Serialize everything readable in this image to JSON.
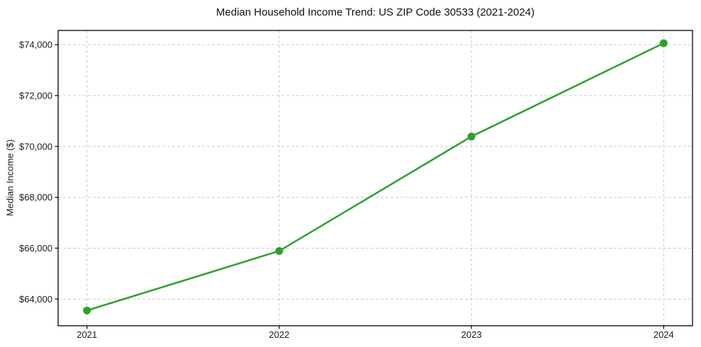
{
  "chart_data": {
    "type": "line",
    "title": "Median Household Income Trend: US ZIP Code 30533 (2021-2024)",
    "xlabel": "",
    "ylabel": "Median Income ($)",
    "x": [
      2021,
      2022,
      2023,
      2024
    ],
    "y": [
      63550,
      65890,
      70390,
      74060
    ],
    "xtick_labels": [
      "2021",
      "2022",
      "2023",
      "2024"
    ],
    "yticks": [
      64000,
      66000,
      68000,
      70000,
      72000,
      74000
    ],
    "ytick_labels": [
      "$64,000",
      "$66,000",
      "$68,000",
      "$70,000",
      "$72,000",
      "$74,000"
    ],
    "xlim": [
      2020.85,
      2024.15
    ],
    "ylim": [
      62950,
      74560
    ],
    "grid": true,
    "grid_line_style": "dashed",
    "grid_color": "#cccccc",
    "line_color": "#2ca02c",
    "marker": "circle",
    "marker_size": 5.5,
    "line_width": 2.5,
    "spine_color": "#000000",
    "tick_label_color": "#1a1a1a",
    "legend": "none",
    "background_color": "#ffffff"
  }
}
